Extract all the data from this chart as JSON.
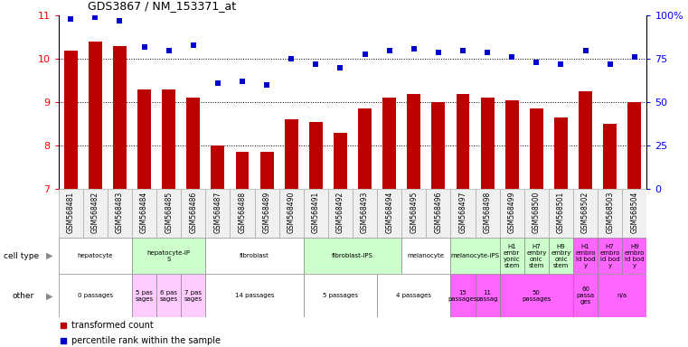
{
  "title": "GDS3867 / NM_153371_at",
  "samples": [
    "GSM568481",
    "GSM568482",
    "GSM568483",
    "GSM568484",
    "GSM568485",
    "GSM568486",
    "GSM568487",
    "GSM568488",
    "GSM568489",
    "GSM568490",
    "GSM568491",
    "GSM568492",
    "GSM568493",
    "GSM568494",
    "GSM568495",
    "GSM568496",
    "GSM568497",
    "GSM568498",
    "GSM568499",
    "GSM568500",
    "GSM568501",
    "GSM568502",
    "GSM568503",
    "GSM568504"
  ],
  "bar_values": [
    10.2,
    10.4,
    10.3,
    9.3,
    9.3,
    9.1,
    8.0,
    7.85,
    7.85,
    8.6,
    8.55,
    8.3,
    8.85,
    9.1,
    9.2,
    9.0,
    9.2,
    9.1,
    9.05,
    8.85,
    8.65,
    9.25,
    8.5,
    9.0
  ],
  "dot_values": [
    98,
    99,
    97,
    82,
    80,
    83,
    61,
    62,
    60,
    75,
    72,
    70,
    78,
    80,
    81,
    79,
    80,
    79,
    76,
    73,
    72,
    80,
    72,
    76
  ],
  "bar_color": "#bb0000",
  "dot_color": "#0000cc",
  "ylim_left": [
    7,
    11
  ],
  "ylim_right": [
    0,
    100
  ],
  "yticks_left": [
    7,
    8,
    9,
    10,
    11
  ],
  "ytick_labels_right": [
    "0",
    "25",
    "50",
    "75",
    "100%"
  ],
  "cell_type_groups": [
    {
      "label": "hepatocyte",
      "start": 0,
      "end": 2,
      "color": "#ffffff"
    },
    {
      "label": "hepatocyte-iP\nS",
      "start": 3,
      "end": 5,
      "color": "#ccffcc"
    },
    {
      "label": "fibroblast",
      "start": 6,
      "end": 9,
      "color": "#ffffff"
    },
    {
      "label": "fibroblast-IPS",
      "start": 10,
      "end": 13,
      "color": "#ccffcc"
    },
    {
      "label": "melanocyte",
      "start": 14,
      "end": 15,
      "color": "#ffffff"
    },
    {
      "label": "melanocyte-iPS",
      "start": 16,
      "end": 17,
      "color": "#ccffcc"
    },
    {
      "label": "H1\nembr\nyonic\nstem",
      "start": 18,
      "end": 18,
      "color": "#ccffcc"
    },
    {
      "label": "H7\nembry\nonic\nstem",
      "start": 19,
      "end": 19,
      "color": "#ccffcc"
    },
    {
      "label": "H9\nembry\nonic\nstem",
      "start": 20,
      "end": 20,
      "color": "#ccffcc"
    },
    {
      "label": "H1\nembro\nid bod\ny",
      "start": 21,
      "end": 21,
      "color": "#ff66ff"
    },
    {
      "label": "H7\nembro\nid bod\ny",
      "start": 22,
      "end": 22,
      "color": "#ff66ff"
    },
    {
      "label": "H9\nembro\nid bod\ny",
      "start": 23,
      "end": 23,
      "color": "#ff66ff"
    }
  ],
  "other_groups": [
    {
      "label": "0 passages",
      "start": 0,
      "end": 2,
      "color": "#ffffff"
    },
    {
      "label": "5 pas\nsages",
      "start": 3,
      "end": 3,
      "color": "#ffccff"
    },
    {
      "label": "6 pas\nsages",
      "start": 4,
      "end": 4,
      "color": "#ffccff"
    },
    {
      "label": "7 pas\nsages",
      "start": 5,
      "end": 5,
      "color": "#ffccff"
    },
    {
      "label": "14 passages",
      "start": 6,
      "end": 9,
      "color": "#ffffff"
    },
    {
      "label": "5 passages",
      "start": 10,
      "end": 12,
      "color": "#ffffff"
    },
    {
      "label": "4 passages",
      "start": 13,
      "end": 15,
      "color": "#ffffff"
    },
    {
      "label": "15\npassages",
      "start": 16,
      "end": 16,
      "color": "#ff66ff"
    },
    {
      "label": "11\npassag",
      "start": 17,
      "end": 17,
      "color": "#ff66ff"
    },
    {
      "label": "50\npassages",
      "start": 18,
      "end": 20,
      "color": "#ff66ff"
    },
    {
      "label": "60\npassa\nges",
      "start": 21,
      "end": 21,
      "color": "#ff66ff"
    },
    {
      "label": "n/a",
      "start": 22,
      "end": 23,
      "color": "#ff66ff"
    }
  ],
  "legend_items": [
    {
      "label": "transformed count",
      "color": "#bb0000"
    },
    {
      "label": "percentile rank within the sample",
      "color": "#0000cc"
    }
  ],
  "background_color": "#f0f0f0"
}
